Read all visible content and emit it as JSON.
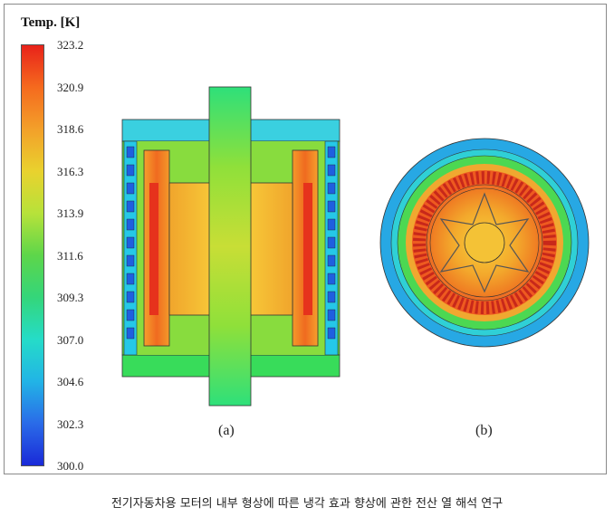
{
  "legend": {
    "title": "Temp. [K]",
    "ticks": [
      "323.2",
      "320.9",
      "318.6",
      "316.3",
      "313.9",
      "311.6",
      "309.3",
      "307.0",
      "304.6",
      "302.3",
      "300.0"
    ]
  },
  "panels": {
    "a_label": "(a)",
    "b_label": "(b)"
  },
  "caption": "전기자동차용 모터의 내부 형상에 따른 냉각 효과 향상에 관한 전산 열 해석  연구",
  "colors": {
    "hot": "#e8221a",
    "warm": "#f3a02a",
    "mid": "#5dd64a",
    "cool": "#25dcc8",
    "cold": "#1a2ad8"
  }
}
